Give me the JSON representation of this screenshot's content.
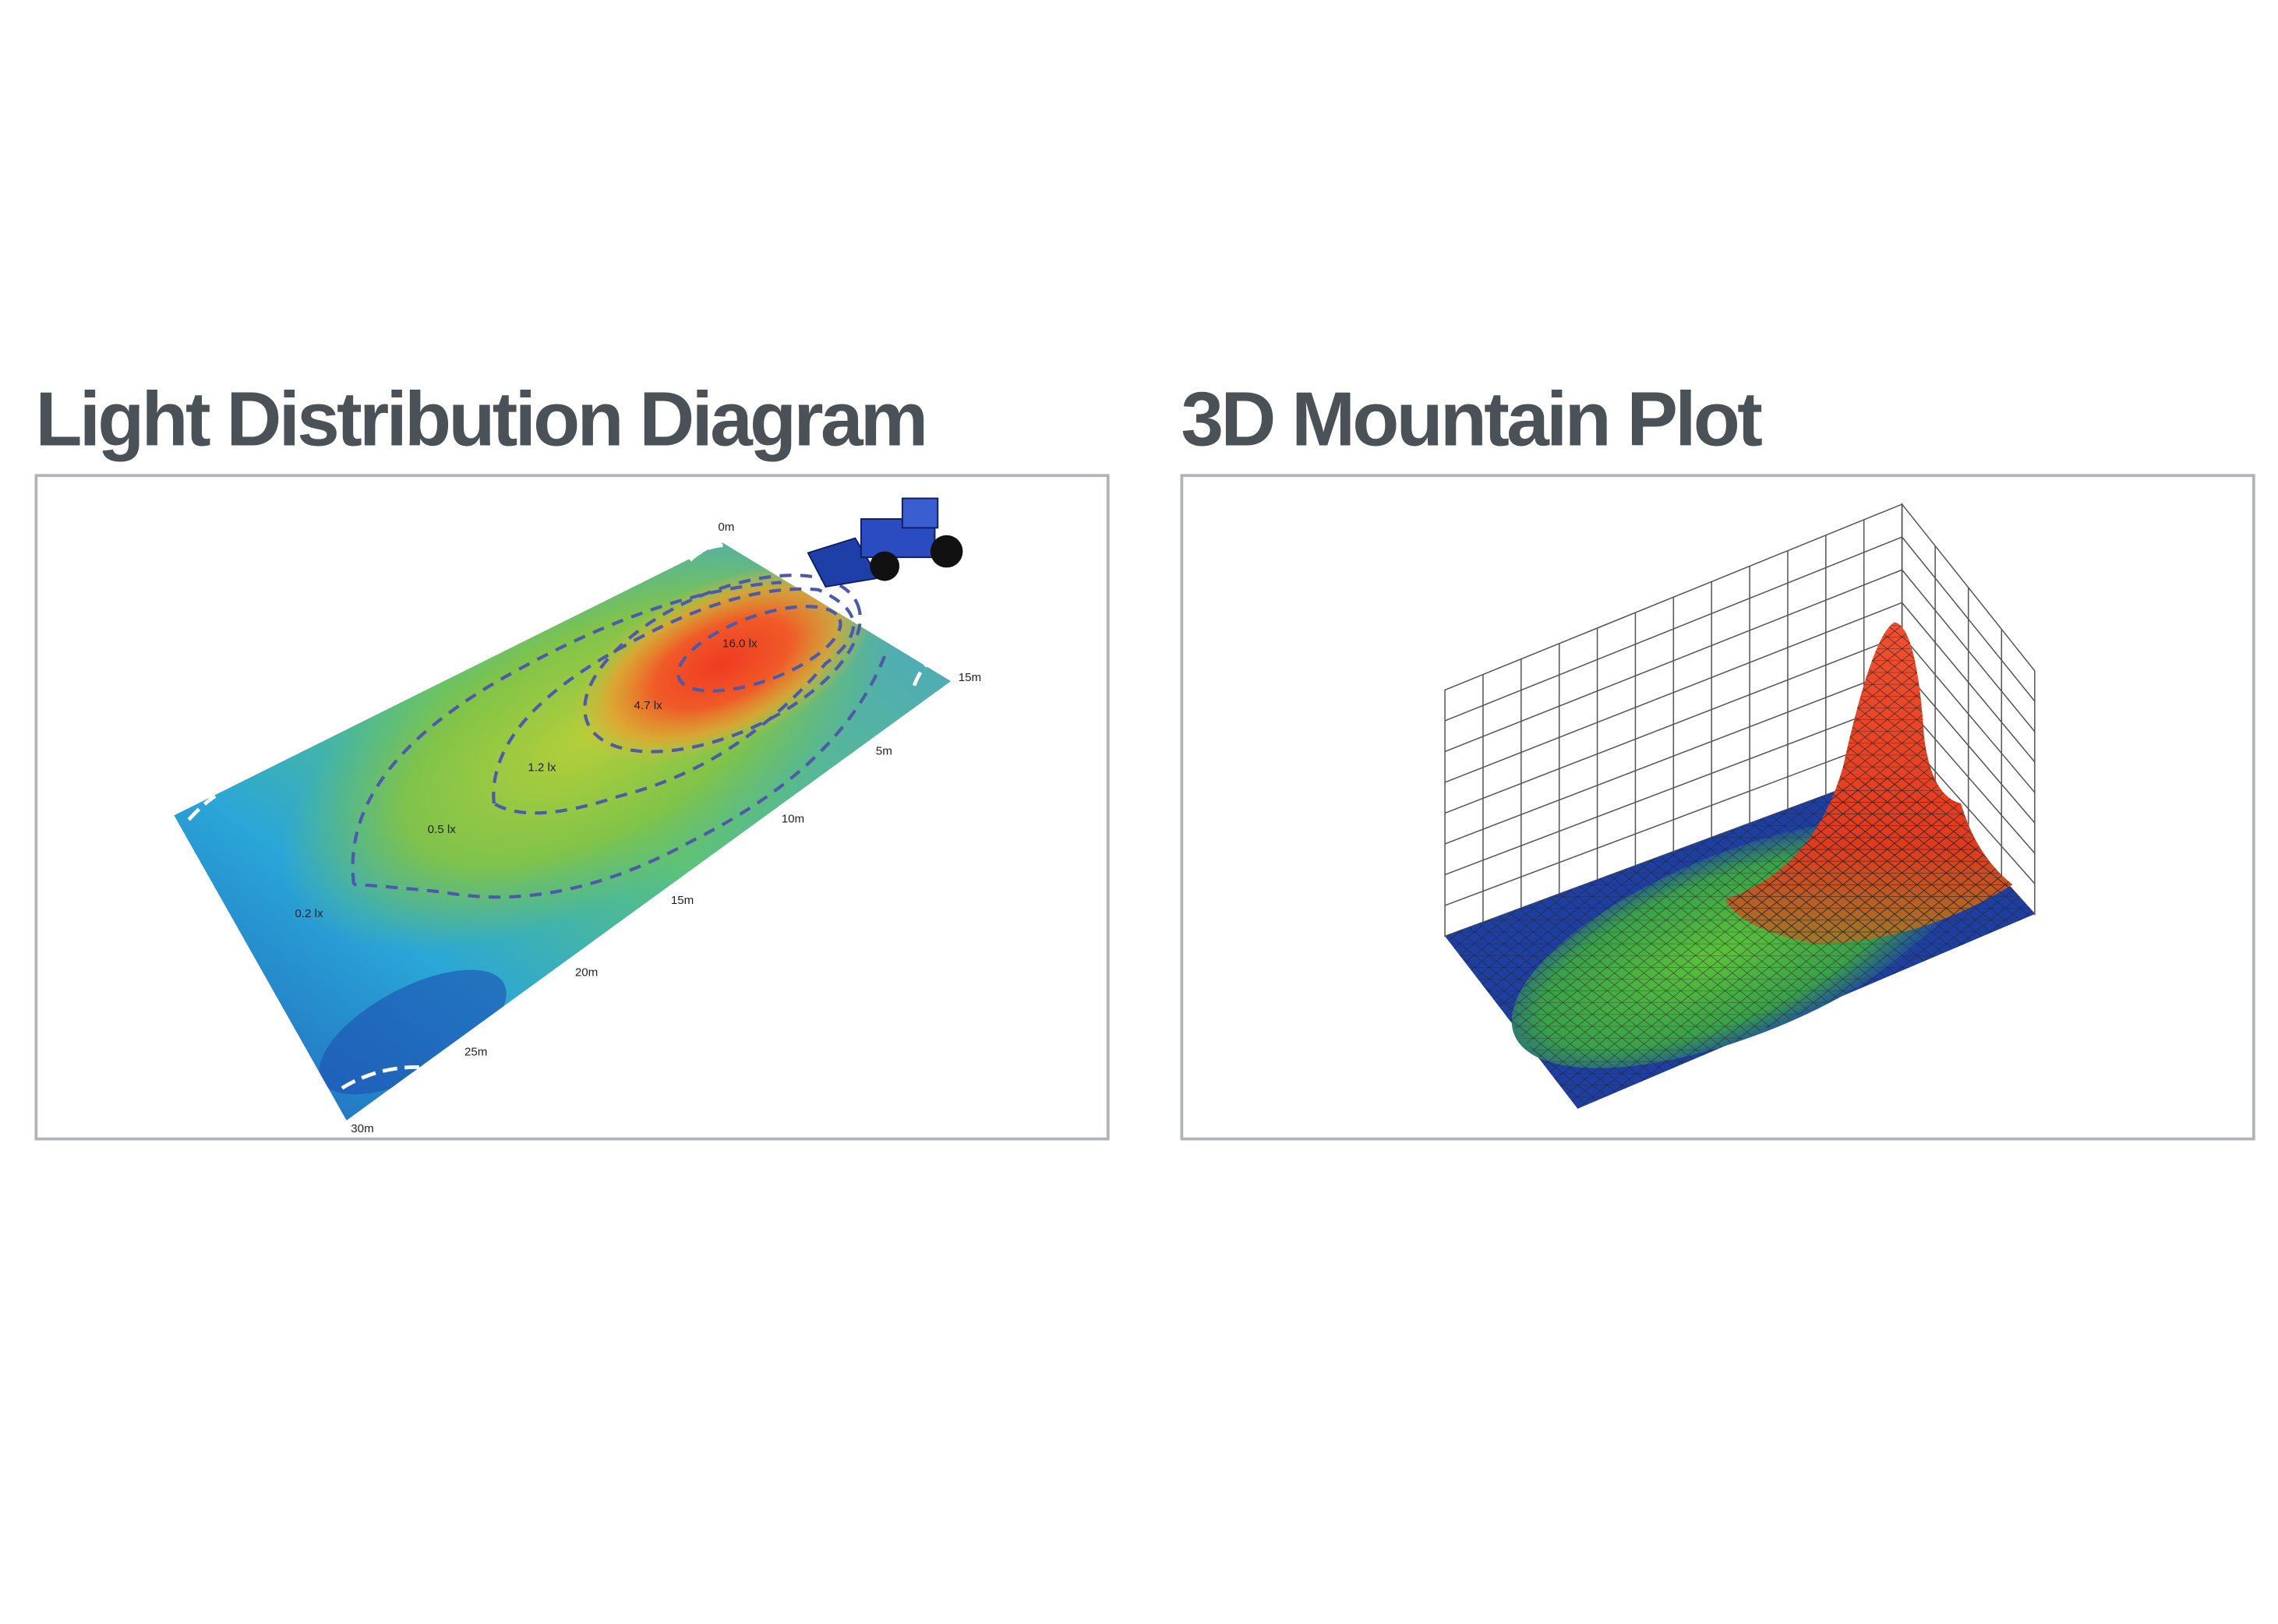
{
  "panels": [
    {
      "title": "Light Distribution Diagram",
      "distance_labels": [
        "0m",
        "15m",
        "5m",
        "10m",
        "15m",
        "20m",
        "25m",
        "30m"
      ],
      "contour_labels": [
        "16.0 lx",
        "4.7 lx",
        "1.2 lx",
        "0.5 lx",
        "0.2 lx"
      ]
    },
    {
      "title": "3D Mountain Plot"
    }
  ]
}
